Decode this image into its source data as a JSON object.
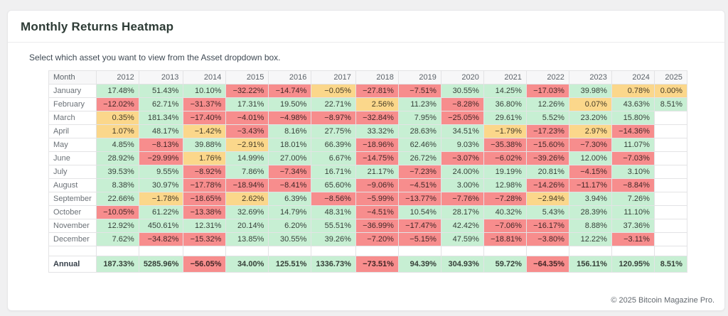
{
  "page": {
    "title": "Monthly Returns Heatmap",
    "subtitle": "Select which asset you want to view from the Asset dropdown box.",
    "footer": "© 2025 Bitcoin Magazine Pro."
  },
  "chart_data": {
    "type": "heatmap",
    "title": "Monthly Returns Heatmap",
    "value_unit": "%",
    "columns": [
      "Month",
      "2012",
      "2013",
      "2014",
      "2015",
      "2016",
      "2017",
      "2018",
      "2019",
      "2020",
      "2021",
      "2022",
      "2023",
      "2024",
      "2025"
    ],
    "rows": [
      {
        "label": "January",
        "values": [
          17.48,
          51.43,
          10.1,
          -32.22,
          -14.74,
          -0.05,
          -27.81,
          -7.51,
          30.55,
          14.25,
          -17.03,
          39.98,
          0.78,
          0.0
        ]
      },
      {
        "label": "February",
        "values": [
          -12.02,
          62.71,
          -31.37,
          17.31,
          19.5,
          22.71,
          2.56,
          11.23,
          -8.28,
          36.8,
          12.26,
          0.07,
          43.63,
          8.51
        ]
      },
      {
        "label": "March",
        "values": [
          0.35,
          181.34,
          -17.4,
          -4.01,
          -4.98,
          -8.97,
          -32.84,
          7.95,
          -25.05,
          29.61,
          5.52,
          23.2,
          15.8,
          null
        ]
      },
      {
        "label": "April",
        "values": [
          1.07,
          48.17,
          -1.42,
          -3.43,
          8.16,
          27.75,
          33.32,
          28.63,
          34.51,
          -1.79,
          -17.23,
          2.97,
          -14.36,
          null
        ]
      },
      {
        "label": "May",
        "values": [
          4.85,
          -8.13,
          39.88,
          -2.91,
          18.01,
          66.39,
          -18.96,
          62.46,
          9.03,
          -35.38,
          -15.6,
          -7.3,
          11.07,
          null
        ]
      },
      {
        "label": "June",
        "values": [
          28.92,
          -29.99,
          1.76,
          14.99,
          27.0,
          6.67,
          -14.75,
          26.72,
          -3.07,
          -6.02,
          -39.26,
          12.0,
          -7.03,
          null
        ]
      },
      {
        "label": "July",
        "values": [
          39.53,
          9.55,
          -8.92,
          7.86,
          -7.34,
          16.71,
          21.17,
          -7.23,
          24.0,
          19.19,
          20.81,
          -4.15,
          3.1,
          null
        ]
      },
      {
        "label": "August",
        "values": [
          8.38,
          30.97,
          -17.78,
          -18.94,
          -8.41,
          65.6,
          -9.06,
          -4.51,
          3.0,
          12.98,
          -14.26,
          -11.17,
          -8.84,
          null
        ]
      },
      {
        "label": "September",
        "values": [
          22.66,
          -1.78,
          -18.65,
          2.62,
          6.39,
          -8.56,
          -5.99,
          -13.77,
          -7.76,
          -7.28,
          -2.94,
          3.94,
          7.26,
          null
        ]
      },
      {
        "label": "October",
        "values": [
          -10.05,
          61.22,
          -13.38,
          32.69,
          14.79,
          48.31,
          -4.51,
          10.54,
          28.17,
          40.32,
          5.43,
          28.39,
          11.1,
          null
        ]
      },
      {
        "label": "November",
        "values": [
          12.92,
          450.61,
          12.31,
          20.14,
          6.2,
          55.51,
          -36.99,
          -17.47,
          42.42,
          -7.06,
          -16.17,
          8.88,
          37.36,
          null
        ]
      },
      {
        "label": "December",
        "values": [
          7.62,
          -34.82,
          -15.32,
          13.85,
          30.55,
          39.26,
          -7.2,
          -5.15,
          47.59,
          -18.81,
          -3.8,
          12.22,
          -3.11,
          null
        ]
      }
    ],
    "annual": {
      "label": "Annual",
      "values": [
        187.33,
        5285.96,
        -56.05,
        34.0,
        125.51,
        1336.73,
        -73.51,
        94.39,
        304.93,
        59.72,
        -64.35,
        156.11,
        120.95,
        8.51
      ]
    },
    "colors": {
      "positive_bg": "#c7efd3",
      "negative_bg": "#f78d8d",
      "neutral_bg": "#fbd78b",
      "empty_bg": "#ffffff"
    },
    "color_rule": "green if value >= 3, red if value <= -3, yellow otherwise, white if no data",
    "legend_position": "none",
    "grid": true
  }
}
